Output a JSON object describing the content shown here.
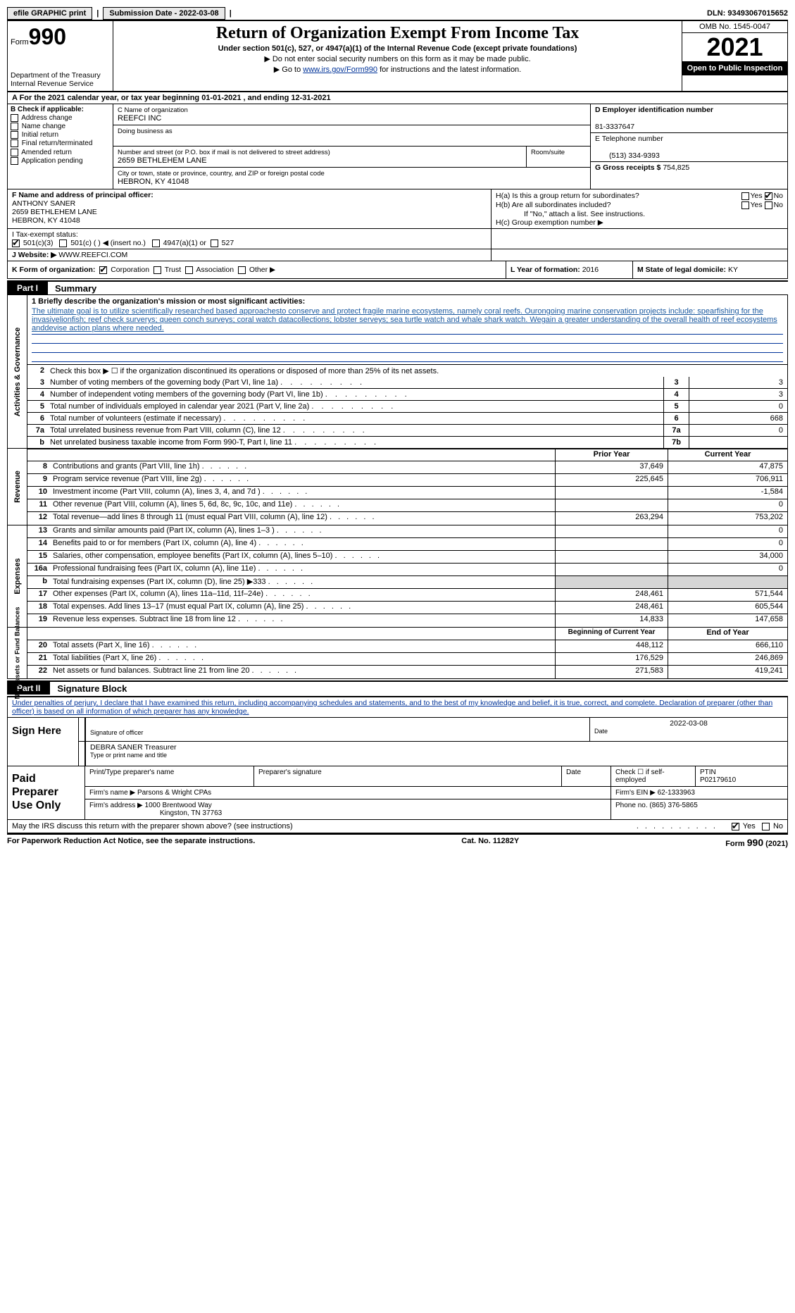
{
  "topbar": {
    "efile": "efile GRAPHIC print",
    "submission_label": "Submission Date - ",
    "submission_date": "2022-03-08",
    "dln_label": "DLN:",
    "dln": "93493067015652"
  },
  "header": {
    "form_word": "Form",
    "form_num": "990",
    "dept": "Department of the Treasury\nInternal Revenue Service",
    "title": "Return of Organization Exempt From Income Tax",
    "subtitle": "Under section 501(c), 527, or 4947(a)(1) of the Internal Revenue Code (except private foundations)",
    "note1": "▶ Do not enter social security numbers on this form as it may be made public.",
    "note2_pre": "▶ Go to ",
    "note2_link": "www.irs.gov/Form990",
    "note2_post": " for instructions and the latest information.",
    "omb": "OMB No. 1545-0047",
    "year": "2021",
    "open_pub": "Open to Public Inspection"
  },
  "line_a": "A For the 2021 calendar year, or tax year beginning 01-01-2021   , and ending 12-31-2021",
  "box_b": {
    "title": "B Check if applicable:",
    "addr": "Address change",
    "name": "Name change",
    "init": "Initial return",
    "final": "Final return/terminated",
    "amend": "Amended return",
    "app": "Application pending"
  },
  "box_c": {
    "name_lbl": "C Name of organization",
    "name": "REEFCI INC",
    "dba_lbl": "Doing business as",
    "dba": "",
    "street_lbl": "Number and street (or P.O. box if mail is not delivered to street address)",
    "street": "2659 BETHLEHEM LANE",
    "room_lbl": "Room/suite",
    "city_lbl": "City or town, state or province, country, and ZIP or foreign postal code",
    "city": "HEBRON, KY  41048"
  },
  "box_d": {
    "lbl": "D Employer identification number",
    "val": "81-3337647"
  },
  "box_e": {
    "lbl": "E Telephone number",
    "val": "(513) 334-9393"
  },
  "box_g": {
    "lbl": "G Gross receipts $",
    "val": "754,825"
  },
  "box_f": {
    "lbl": "F  Name and address of principal officer:",
    "name": "ANTHONY SANER",
    "street": "2659 BETHLEHEM LANE",
    "city": "HEBRON, KY  41048"
  },
  "box_h": {
    "a_lbl": "H(a)  Is this a group return for subordinates?",
    "a_yes": "Yes",
    "a_no": "No",
    "a_val": "No",
    "b_lbl": "H(b)  Are all subordinates included?",
    "b_yes": "Yes",
    "b_no": "No",
    "b_note": "If \"No,\" attach a list. See instructions.",
    "c_lbl": "H(c)  Group exemption number ▶"
  },
  "box_i": {
    "lbl": "I   Tax-exempt status:",
    "o1": "501(c)(3)",
    "o2": "501(c) (  ) ◀ (insert no.)",
    "o3": "4947(a)(1) or",
    "o4": "527"
  },
  "box_j": {
    "lbl": "J   Website: ▶",
    "val": "WWW.REEFCI.COM"
  },
  "box_k": {
    "lbl": "K Form of organization:",
    "o1": "Corporation",
    "o2": "Trust",
    "o3": "Association",
    "o4": "Other ▶"
  },
  "box_l": {
    "lbl": "L Year of formation:",
    "val": "2016"
  },
  "box_m": {
    "lbl": "M State of legal domicile:",
    "val": "KY"
  },
  "part1": {
    "tab": "Part I",
    "title": "Summary"
  },
  "summary": {
    "side1": "Activities & Governance",
    "line1_lbl": "1  Briefly describe the organization's mission or most significant activities:",
    "mission": "The ultimate goal is to utilize scientifically researched based approachesto conserve and protect fragile marine ecosystems, namely coral reefs. Ourongoing marine conservation projects include: spearfishing for the invasivelionfish; reef check surverys; queen conch surveys; coral watch datacollections; lobster serveys; sea turtle watch and whale shark watch. Wegain a greater understanding of the overall health of reef ecosystems anddevise action plans where needed.",
    "line2": "Check this box ▶ ☐  if the organization discontinued its operations or disposed of more than 25% of its net assets.",
    "rows": [
      {
        "n": "3",
        "t": "Number of voting members of the governing body (Part VI, line 1a)",
        "box": "3",
        "v": "3"
      },
      {
        "n": "4",
        "t": "Number of independent voting members of the governing body (Part VI, line 1b)",
        "box": "4",
        "v": "3"
      },
      {
        "n": "5",
        "t": "Total number of individuals employed in calendar year 2021 (Part V, line 2a)",
        "box": "5",
        "v": "0"
      },
      {
        "n": "6",
        "t": "Total number of volunteers (estimate if necessary)",
        "box": "6",
        "v": "668"
      },
      {
        "n": "7a",
        "t": "Total unrelated business revenue from Part VIII, column (C), line 12",
        "box": "7a",
        "v": "0"
      },
      {
        "n": " b",
        "t": "Net unrelated business taxable income from Form 990-T, Part I, line 11",
        "box": "7b",
        "v": ""
      }
    ]
  },
  "fin": {
    "prior_hdr": "Prior Year",
    "curr_hdr": "Current Year",
    "side_rev": "Revenue",
    "side_exp": "Expenses",
    "side_net": "Net Assets or Fund Balances",
    "rev": [
      {
        "n": "8",
        "t": "Contributions and grants (Part VIII, line 1h)",
        "p": "37,649",
        "c": "47,875"
      },
      {
        "n": "9",
        "t": "Program service revenue (Part VIII, line 2g)",
        "p": "225,645",
        "c": "706,911"
      },
      {
        "n": "10",
        "t": "Investment income (Part VIII, column (A), lines 3, 4, and 7d )",
        "p": "",
        "c": "-1,584"
      },
      {
        "n": "11",
        "t": "Other revenue (Part VIII, column (A), lines 5, 6d, 8c, 9c, 10c, and 11e)",
        "p": "",
        "c": "0"
      },
      {
        "n": "12",
        "t": "Total revenue—add lines 8 through 11 (must equal Part VIII, column (A), line 12)",
        "p": "263,294",
        "c": "753,202"
      }
    ],
    "exp": [
      {
        "n": "13",
        "t": "Grants and similar amounts paid (Part IX, column (A), lines 1–3 )",
        "p": "",
        "c": "0"
      },
      {
        "n": "14",
        "t": "Benefits paid to or for members (Part IX, column (A), line 4)",
        "p": "",
        "c": "0"
      },
      {
        "n": "15",
        "t": "Salaries, other compensation, employee benefits (Part IX, column (A), lines 5–10)",
        "p": "",
        "c": "34,000"
      },
      {
        "n": "16a",
        "t": "Professional fundraising fees (Part IX, column (A), line 11e)",
        "p": "",
        "c": "0"
      },
      {
        "n": "b",
        "t": "Total fundraising expenses (Part IX, column (D), line 25) ▶333",
        "p": "SHADE",
        "c": "SHADE"
      },
      {
        "n": "17",
        "t": "Other expenses (Part IX, column (A), lines 11a–11d, 11f–24e)",
        "p": "248,461",
        "c": "571,544"
      },
      {
        "n": "18",
        "t": "Total expenses. Add lines 13–17 (must equal Part IX, column (A), line 25)",
        "p": "248,461",
        "c": "605,544"
      },
      {
        "n": "19",
        "t": "Revenue less expenses. Subtract line 18 from line 12",
        "p": "14,833",
        "c": "147,658"
      }
    ],
    "net_hdr_p": "Beginning of Current Year",
    "net_hdr_c": "End of Year",
    "net": [
      {
        "n": "20",
        "t": "Total assets (Part X, line 16)",
        "p": "448,112",
        "c": "666,110"
      },
      {
        "n": "21",
        "t": "Total liabilities (Part X, line 26)",
        "p": "176,529",
        "c": "246,869"
      },
      {
        "n": "22",
        "t": "Net assets or fund balances. Subtract line 21 from line 20",
        "p": "271,583",
        "c": "419,241"
      }
    ]
  },
  "part2": {
    "tab": "Part II",
    "title": "Signature Block"
  },
  "sig": {
    "intro": "Under penalties of perjury, I declare that I have examined this return, including accompanying schedules and statements, and to the best of my knowledge and belief, it is true, correct, and complete. Declaration of preparer (other than officer) is based on all information of which preparer has any knowledge.",
    "sign_here": "Sign Here",
    "sig_of_officer": "Signature of officer",
    "date_lbl": "Date",
    "date_val": "2022-03-08",
    "name_title": "DEBRA SANER  Treasurer",
    "name_title_lbl": "Type or print name and title"
  },
  "prep": {
    "left": "Paid Preparer Use Only",
    "h1": "Print/Type preparer's name",
    "h2": "Preparer's signature",
    "h3": "Date",
    "h4_pre": "Check ☐ if self-employed",
    "h5_lbl": "PTIN",
    "h5_val": "P02179610",
    "firm_name_lbl": "Firm's name    ▶",
    "firm_name": "Parsons & Wright CPAs",
    "firm_ein_lbl": "Firm's EIN ▶",
    "firm_ein": "62-1333963",
    "firm_addr_lbl": "Firm's address ▶",
    "firm_addr1": "1000 Brentwood Way",
    "firm_addr2": "Kingston, TN  37763",
    "phone_lbl": "Phone no.",
    "phone": "(865) 376-5865"
  },
  "discuss": {
    "q": "May the IRS discuss this return with the preparer shown above? (see instructions)",
    "yes": "Yes",
    "no": "No"
  },
  "footer": {
    "left": "For Paperwork Reduction Act Notice, see the separate instructions.",
    "mid": "Cat. No. 11282Y",
    "right": "Form 990 (2021)"
  },
  "colors": {
    "link": "#003399",
    "shade": "#d6d6d6",
    "black": "#000000",
    "white": "#ffffff"
  }
}
